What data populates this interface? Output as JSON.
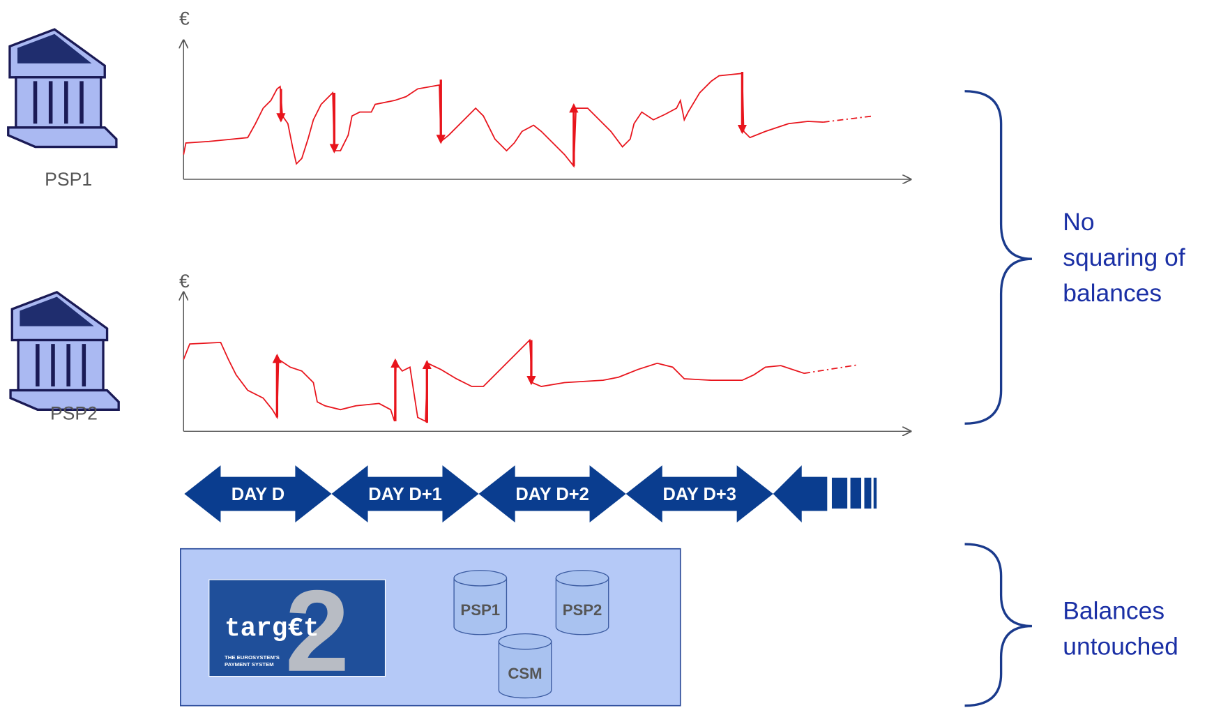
{
  "banks": [
    {
      "label": "PSP1",
      "currency": "€"
    },
    {
      "label": "PSP2",
      "currency": "€"
    }
  ],
  "timeline": {
    "days": [
      "DAY D",
      "DAY D+1",
      "DAY D+2",
      "DAY D+3"
    ]
  },
  "system": {
    "logo": {
      "name": "targ€t",
      "number": "2",
      "tagline": [
        "THE EUROSYSTEM'S",
        "PAYMENT SYSTEM"
      ]
    },
    "databases": [
      "PSP1",
      "PSP2",
      "CSM"
    ]
  },
  "notes": [
    {
      "lines": [
        "No",
        "squaring of",
        "balances"
      ]
    },
    {
      "lines": [
        "Balances",
        "untouched"
      ]
    }
  ]
}
